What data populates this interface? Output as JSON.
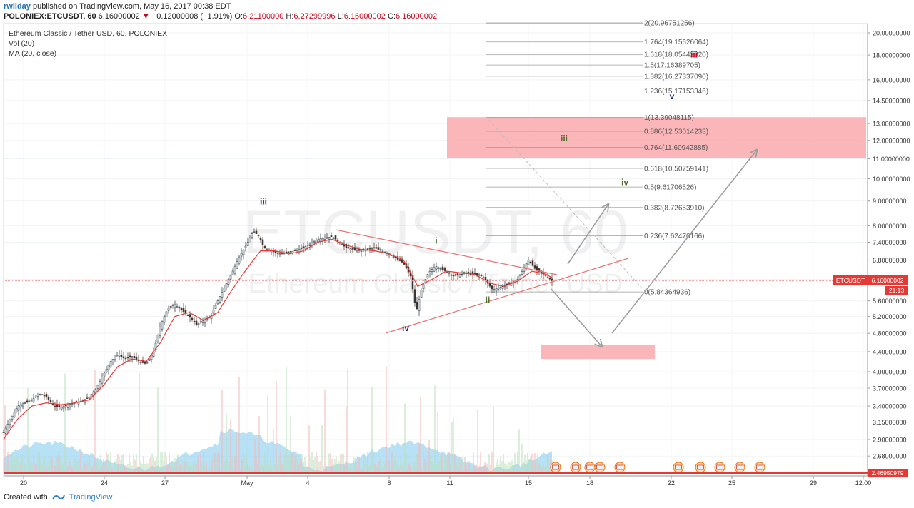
{
  "header": {
    "author": "rwilday",
    "published_text": "published on TradingView.com, May 16, 2017 00:38 EDT",
    "symbol": "POLONIEX:ETCUSDT, 60",
    "price": "6.16000002",
    "change": "−0.12000008 (−1.91%)",
    "open_label": "O:",
    "open": "6.21100000",
    "high_label": "H:",
    "high": "6.27299996",
    "low_label": "L:",
    "low": "6.16000002",
    "close_label": "C:",
    "close": "6.16000002"
  },
  "legend": {
    "title": "Ethereum Classic / Tether USD, 60, POLONIEX",
    "vol": "Vol (20)",
    "ma": "MA (20, close)"
  },
  "watermark": {
    "symbol": "ETCUSDT, 60",
    "name": "Ethereum Classic / Tether USD"
  },
  "price_badge": {
    "label": "ETCUSDT",
    "price": "6.16000002",
    "countdown": "21:13"
  },
  "bottom_badge": "2.46950979",
  "footer": {
    "created_with": "Created with",
    "brand": "TradingView"
  },
  "colors": {
    "candle_up": "#4a4a4a",
    "ma_line": "#e53935",
    "volume": "#7ec8ee",
    "zone": "#f9a9ad",
    "fib_line": "#9e9e9e",
    "accent_red": "#d0021b"
  },
  "chart_data": {
    "type": "candlestick",
    "scale": "log",
    "y_ticks": [
      "20.00000000",
      "18.00000000",
      "16.00000000",
      "14.50000000",
      "13.00000000",
      "12.00000000",
      "11.00000000",
      "10.00000000",
      "9.00000000",
      "8.00000000",
      "7.40000000",
      "6.80000000",
      "6.20000000",
      "5.60000000",
      "5.20000000",
      "4.80000000",
      "4.40000000",
      "4.00000000",
      "3.70000000",
      "3.40000000",
      "3.15000000",
      "2.90000000",
      "2.68000000"
    ],
    "x_ticks": [
      "20",
      "24",
      "27",
      "May",
      "4",
      "8",
      "11",
      "15",
      "18",
      "22",
      "25",
      "29",
      "12:00"
    ],
    "price_series": [
      [
        0,
        3.0
      ],
      [
        10,
        3.2
      ],
      [
        20,
        3.4
      ],
      [
        30,
        3.45
      ],
      [
        40,
        3.5
      ],
      [
        50,
        3.6
      ],
      [
        60,
        3.55
      ],
      [
        70,
        3.4
      ],
      [
        80,
        3.38
      ],
      [
        90,
        3.42
      ],
      [
        100,
        3.45
      ],
      [
        110,
        3.48
      ],
      [
        120,
        3.55
      ],
      [
        130,
        3.7
      ],
      [
        140,
        3.95
      ],
      [
        150,
        4.2
      ],
      [
        160,
        4.35
      ],
      [
        170,
        4.25
      ],
      [
        180,
        4.3
      ],
      [
        190,
        4.2
      ],
      [
        200,
        4.15
      ],
      [
        210,
        4.4
      ],
      [
        220,
        5.0
      ],
      [
        230,
        5.4
      ],
      [
        240,
        5.5
      ],
      [
        250,
        5.35
      ],
      [
        260,
        5.2
      ],
      [
        270,
        5.0
      ],
      [
        280,
        5.1
      ],
      [
        290,
        5.2
      ],
      [
        300,
        5.6
      ],
      [
        310,
        6.0
      ],
      [
        320,
        6.4
      ],
      [
        330,
        6.9
      ],
      [
        340,
        7.3
      ],
      [
        350,
        7.8
      ],
      [
        358,
        7.6
      ],
      [
        365,
        7.2
      ],
      [
        375,
        7.1
      ],
      [
        385,
        7.0
      ],
      [
        400,
        7.05
      ],
      [
        420,
        7.2
      ],
      [
        440,
        7.5
      ],
      [
        460,
        7.6
      ],
      [
        470,
        7.4
      ],
      [
        480,
        7.2
      ],
      [
        500,
        7.1
      ],
      [
        520,
        7.2
      ],
      [
        540,
        7.0
      ],
      [
        560,
        6.7
      ],
      [
        570,
        6.3
      ],
      [
        578,
        5.3
      ],
      [
        585,
        5.9
      ],
      [
        595,
        6.4
      ],
      [
        605,
        6.6
      ],
      [
        615,
        6.5
      ],
      [
        630,
        6.3
      ],
      [
        650,
        6.4
      ],
      [
        670,
        6.3
      ],
      [
        685,
        5.9
      ],
      [
        700,
        6.0
      ],
      [
        720,
        6.2
      ],
      [
        735,
        6.8
      ],
      [
        745,
        6.5
      ],
      [
        760,
        6.3
      ],
      [
        768,
        6.16
      ]
    ],
    "ma_series": [
      [
        0,
        2.9
      ],
      [
        20,
        3.2
      ],
      [
        40,
        3.4
      ],
      [
        60,
        3.45
      ],
      [
        80,
        3.42
      ],
      [
        100,
        3.45
      ],
      [
        120,
        3.5
      ],
      [
        140,
        3.75
      ],
      [
        160,
        4.1
      ],
      [
        180,
        4.25
      ],
      [
        200,
        4.2
      ],
      [
        220,
        4.6
      ],
      [
        240,
        5.2
      ],
      [
        260,
        5.3
      ],
      [
        280,
        5.1
      ],
      [
        300,
        5.3
      ],
      [
        320,
        5.9
      ],
      [
        340,
        6.5
      ],
      [
        360,
        7.1
      ],
      [
        380,
        7.1
      ],
      [
        400,
        7.0
      ],
      [
        420,
        7.1
      ],
      [
        440,
        7.4
      ],
      [
        460,
        7.5
      ],
      [
        480,
        7.3
      ],
      [
        500,
        7.15
      ],
      [
        520,
        7.1
      ],
      [
        540,
        7.0
      ],
      [
        560,
        6.8
      ],
      [
        580,
        6.0
      ],
      [
        600,
        6.2
      ],
      [
        620,
        6.45
      ],
      [
        640,
        6.4
      ],
      [
        660,
        6.35
      ],
      [
        680,
        6.1
      ],
      [
        700,
        6.0
      ],
      [
        720,
        6.15
      ],
      [
        740,
        6.45
      ],
      [
        760,
        6.35
      ],
      [
        768,
        6.25
      ]
    ],
    "fib_levels": [
      {
        "label": "2(20.96751256)",
        "value": 20.96751256,
        "x1": 680
      },
      {
        "label": "1.764(19.15626064)",
        "value": 19.15626064,
        "x1": 680
      },
      {
        "label": "1.618(18.05442320)",
        "value": 18.0544232,
        "x1": 680
      },
      {
        "label": "1.5(17.16389705)",
        "value": 17.16389705,
        "x1": 680
      },
      {
        "label": "1.382(16.27337090)",
        "value": 16.2733709,
        "x1": 680
      },
      {
        "label": "1.236(15.17153346)",
        "value": 15.17153346,
        "x1": 680
      },
      {
        "label": "1(13.39048115)",
        "value": 13.39048115,
        "x1": 680
      },
      {
        "label": "0.886(12.53014233)",
        "value": 12.53014233,
        "x1": 680
      },
      {
        "label": "0.764(11.60942885)",
        "value": 11.60942885,
        "x1": 680
      },
      {
        "label": "0.618(10.50759141)",
        "value": 10.50759141,
        "x1": 680
      },
      {
        "label": "0.5(9.61706526)",
        "value": 9.61706526,
        "x1": 680
      },
      {
        "label": "0.382(8.72653910)",
        "value": 8.7265391,
        "x1": 680
      },
      {
        "label": "0.236(7.62470166)",
        "value": 7.62470166,
        "x1": 680
      },
      {
        "label": "0(5.84364936)",
        "value": 5.84364936,
        "x1": 680
      }
    ],
    "zones": [
      {
        "name": "target-zone",
        "x_from": 626,
        "x_to": 1213,
        "top": 13.4,
        "bottom": 11.05
      },
      {
        "name": "support-zone",
        "x_from": 757,
        "x_to": 917,
        "top": 4.55,
        "bottom": 4.25
      }
    ],
    "wave_labels": [
      {
        "text": "iii",
        "x": 369,
        "y": 8.85,
        "color": "#1a237e"
      },
      {
        "text": "iv",
        "x": 568,
        "y": 4.85,
        "color": "#1a237e"
      },
      {
        "text": "i",
        "x": 611,
        "y": 7.35,
        "color": "#556b2f"
      },
      {
        "text": "ii",
        "x": 683,
        "y": 5.55,
        "color": "#556b2f"
      },
      {
        "text": "iii",
        "x": 790,
        "y": 11.95,
        "color": "#556b2f"
      },
      {
        "text": "iv",
        "x": 875,
        "y": 9.7,
        "color": "#556b2f"
      },
      {
        "text": "v",
        "x": 941,
        "y": 14.6,
        "color": "#1a237e"
      },
      {
        "text": "iii",
        "x": 972,
        "y": 17.8,
        "color": "#d0021b"
      }
    ],
    "current_price": 6.16000002
  }
}
